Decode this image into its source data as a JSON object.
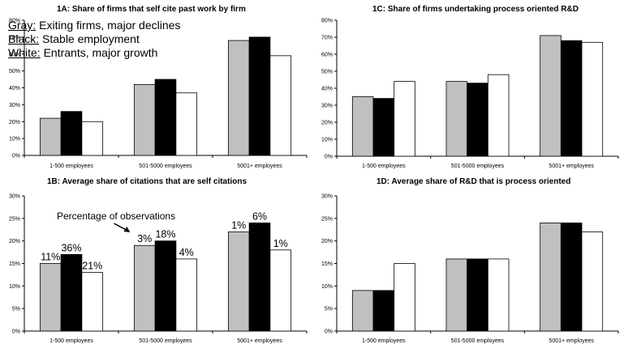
{
  "series_colors": {
    "gray": "#c0c0c0",
    "black": "#000000",
    "white": "#ffffff"
  },
  "chart_data": [
    {
      "id": "1a",
      "type": "bar",
      "title": "1A: Share of firms that self cite past work by firm",
      "categories": [
        "1-500 employees",
        "501-5000 employees",
        "5001+ employees"
      ],
      "series": [
        {
          "color": "gray",
          "values": [
            22,
            42,
            68
          ]
        },
        {
          "color": "black",
          "values": [
            26,
            45,
            70
          ]
        },
        {
          "color": "white",
          "values": [
            20,
            37,
            59
          ]
        }
      ],
      "ylim": [
        0,
        80
      ],
      "yticks": [
        "0%",
        "10%",
        "20%",
        "30%",
        "40%",
        "50%",
        "60%",
        "70%",
        "80%"
      ],
      "legend": [
        {
          "key": "Gray:",
          "text": "Exiting firms, major declines"
        },
        {
          "key": "Black:",
          "text": "Stable employment"
        },
        {
          "key": "White:",
          "text": "Entrants, major growth"
        }
      ],
      "legend_position": "top-left"
    },
    {
      "id": "1c",
      "type": "bar",
      "title": "1C: Share of firms undertaking process oriented R&D",
      "categories": [
        "1-500 employees",
        "501-5000 employees",
        "5001+ employees"
      ],
      "series": [
        {
          "color": "gray",
          "values": [
            35,
            44,
            71
          ]
        },
        {
          "color": "black",
          "values": [
            34,
            43,
            68
          ]
        },
        {
          "color": "white",
          "values": [
            44,
            48,
            67
          ]
        }
      ],
      "ylim": [
        0,
        80
      ],
      "yticks": [
        "0%",
        "10%",
        "20%",
        "30%",
        "40%",
        "50%",
        "60%",
        "70%",
        "80%"
      ]
    },
    {
      "id": "1b",
      "type": "bar",
      "title": "1B: Average share of citations that are self citations",
      "categories": [
        "1-500 employees",
        "501-5000 employees",
        "5001+ employees"
      ],
      "series": [
        {
          "color": "gray",
          "values": [
            15,
            19,
            22
          ],
          "labels": [
            "11%",
            "3%",
            "1%"
          ]
        },
        {
          "color": "black",
          "values": [
            17,
            20,
            24
          ],
          "labels": [
            "36%",
            "18%",
            "6%"
          ]
        },
        {
          "color": "white",
          "values": [
            13,
            16,
            18
          ],
          "labels": [
            "21%",
            "4%",
            "1%"
          ]
        }
      ],
      "ylim": [
        0,
        30
      ],
      "yticks": [
        "0%",
        "5%",
        "10%",
        "15%",
        "20%",
        "25%",
        "30%"
      ],
      "annotation": "Percentage of observations"
    },
    {
      "id": "1d",
      "type": "bar",
      "title": "1D: Average share of R&D that is process oriented",
      "categories": [
        "1-500 employees",
        "501-5000 employees",
        "5001+ employees"
      ],
      "series": [
        {
          "color": "gray",
          "values": [
            9,
            16,
            24
          ]
        },
        {
          "color": "black",
          "values": [
            9,
            16,
            24
          ]
        },
        {
          "color": "white",
          "values": [
            15,
            16,
            22
          ]
        }
      ],
      "ylim": [
        0,
        30
      ],
      "yticks": [
        "0%",
        "5%",
        "10%",
        "15%",
        "20%",
        "25%",
        "30%"
      ]
    }
  ]
}
